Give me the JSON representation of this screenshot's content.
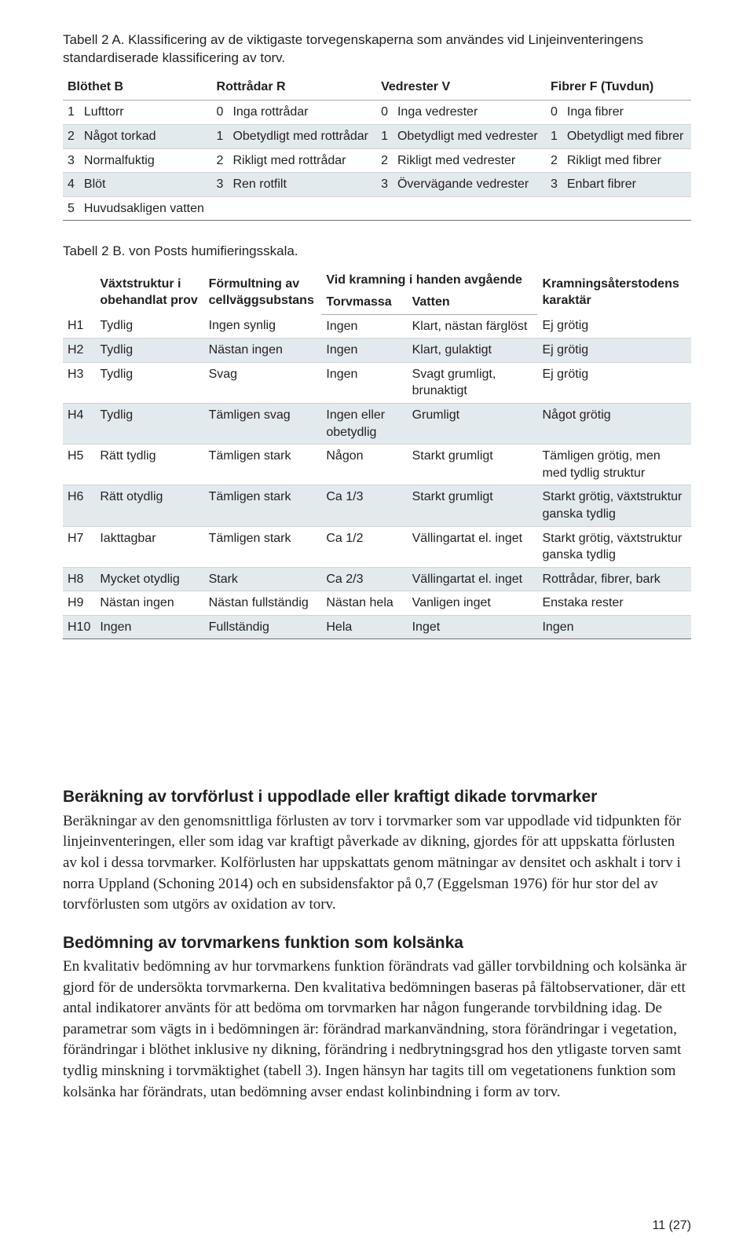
{
  "colors": {
    "background": "#ffffff",
    "text": "#231f20",
    "row_alt_bg": "#e3eaed",
    "border_light": "#d1d3d4",
    "border_header": "#a7a9ac",
    "border_bottom_heavy": "#6d6e71"
  },
  "typography": {
    "sans_family": "Myriad Pro / Segoe UI / Helvetica Neue / Arial",
    "serif_family": "Adobe Caslon Pro / Garamond / Georgia / Times New Roman",
    "caption_fontsize_pt": 12,
    "table_fontsize_pt": 11.5,
    "heading_fontsize_pt": 15,
    "body_fontsize_pt": 13.5
  },
  "tableA": {
    "caption": "Tabell 2 A. Klassificering av de viktigaste torvegenskaperna som användes vid Linjeinventeringens standardiserade klassificering av torv.",
    "headers": {
      "c1": "Blöthet B",
      "c2": "Rottrådar R",
      "c3": "Vedrester V",
      "c4": "Fibrer F (Tuvdun)"
    },
    "rows": [
      {
        "n1": "1",
        "t1": "Lufttorr",
        "n2": "0",
        "t2": "Inga rottrådar",
        "n3": "0",
        "t3": "Inga vedrester",
        "n4": "0",
        "t4": "Inga fibrer",
        "alt": false
      },
      {
        "n1": "2",
        "t1": "Något torkad",
        "n2": "1",
        "t2": "Obetydligt med rottrådar",
        "n3": "1",
        "t3": "Obetydligt med vedrester",
        "n4": "1",
        "t4": "Obetydligt med fibrer",
        "alt": true
      },
      {
        "n1": "3",
        "t1": "Normalfuktig",
        "n2": "2",
        "t2": "Rikligt med rottrådar",
        "n3": "2",
        "t3": "Rikligt med vedrester",
        "n4": "2",
        "t4": "Rikligt med fibrer",
        "alt": false
      },
      {
        "n1": "4",
        "t1": "Blöt",
        "n2": "3",
        "t2": "Ren rotfilt",
        "n3": "3",
        "t3": "Övervägande vedrester",
        "n4": "3",
        "t4": "Enbart fibrer",
        "alt": true
      },
      {
        "n1": "5",
        "t1": "Huvudsakligen vatten",
        "n2": "",
        "t2": "",
        "n3": "",
        "t3": "",
        "n4": "",
        "t4": "",
        "alt": false
      }
    ]
  },
  "tableB": {
    "caption": "Tabell 2 B. von Posts humifieringsskala.",
    "headers": {
      "c1": "Växtstruktur i obehandlat prov",
      "c2": "Förmultning av cellväggsubstans",
      "c3_top": "Vid kramning i handen avgående",
      "c3a": "Torvmassa",
      "c3b": "Vatten",
      "c4": "Kramningsåterstodens karaktär"
    },
    "rows": [
      {
        "id": "H1",
        "c1": "Tydlig",
        "c2": "Ingen synlig",
        "c3a": "Ingen",
        "c3b": "Klart, nästan färglöst",
        "c4": "Ej grötig",
        "alt": false
      },
      {
        "id": "H2",
        "c1": "Tydlig",
        "c2": "Nästan ingen",
        "c3a": "Ingen",
        "c3b": "Klart, gulaktigt",
        "c4": "Ej grötig",
        "alt": true
      },
      {
        "id": "H3",
        "c1": "Tydlig",
        "c2": "Svag",
        "c3a": "Ingen",
        "c3b": "Svagt grumligt, brunaktigt",
        "c4": "Ej grötig",
        "alt": false
      },
      {
        "id": "H4",
        "c1": "Tydlig",
        "c2": "Tämligen svag",
        "c3a": "Ingen eller obetydlig",
        "c3b": "Grumligt",
        "c4": "Något grötig",
        "alt": true
      },
      {
        "id": "H5",
        "c1": "Rätt tydlig",
        "c2": "Tämligen stark",
        "c3a": "Någon",
        "c3b": "Starkt grumligt",
        "c4": "Tämligen grötig, men med tydlig struktur",
        "alt": false
      },
      {
        "id": "H6",
        "c1": "Rätt otydlig",
        "c2": "Tämligen stark",
        "c3a": "Ca 1/3",
        "c3b": "Starkt grumligt",
        "c4": "Starkt grötig, växtstruktur ganska tydlig",
        "alt": true
      },
      {
        "id": "H7",
        "c1": "Iakttagbar",
        "c2": "Tämligen stark",
        "c3a": "Ca 1/2",
        "c3b": "Vällingartat el. inget",
        "c4": "Starkt grötig, växtstruktur ganska tydlig",
        "alt": false
      },
      {
        "id": "H8",
        "c1": "Mycket otydlig",
        "c2": "Stark",
        "c3a": "Ca 2/3",
        "c3b": "Vällingartat el. inget",
        "c4": "Rottrådar, fibrer, bark",
        "alt": true
      },
      {
        "id": "H9",
        "c1": "Nästan ingen",
        "c2": "Nästan fullständig",
        "c3a": "Nästan hela",
        "c3b": "Vanligen inget",
        "c4": "Enstaka rester",
        "alt": false
      },
      {
        "id": "H10",
        "c1": "Ingen",
        "c2": "Fullständig",
        "c3a": "Hela",
        "c3b": "Inget",
        "c4": "Ingen",
        "alt": true
      }
    ]
  },
  "section1": {
    "heading": "Beräkning av torvförlust i uppodlade eller kraftigt dikade torvmarker",
    "body": "Beräkningar av den genomsnittliga förlusten av torv i torvmarker som var uppodlade vid tidpunkten för linjeinventeringen, eller som idag var kraftigt påverkade av dikning, gjordes för att uppskatta förlusten av kol i dessa torvmarker. Kolförlusten har uppskattats genom mätningar av densitet och askhalt i torv i norra Uppland (Schoning 2014) och en subsidensfaktor på 0,7 (Eggelsman 1976) för hur stor del av torvförlusten som utgörs av oxidation av torv."
  },
  "section2": {
    "heading": "Bedömning av torvmarkens funktion som kolsänka",
    "body": "En kvalitativ bedömning av hur torvmarkens funktion förändrats vad gäller torvbildning och kolsänka är gjord för de undersökta torvmarkerna. Den kvalitativa bedömningen baseras på fältobservationer, där ett antal indikatorer använts för att bedöma om torvmarken har någon fungerande torvbildning idag. De parametrar som vägts in i bedömningen är: förändrad markanvändning, stora förändringar i vegetation, förändringar i blöthet inklusive ny dikning, förändring i nedbrytningsgrad hos den ytligaste torven samt tydlig minskning i torvmäktighet (tabell 3). Ingen hänsyn har tagits till om vegetationens funktion som kolsänka har förändrats, utan bedömning avser endast kolinbindning i form av torv."
  },
  "page_number": "11 (27)"
}
